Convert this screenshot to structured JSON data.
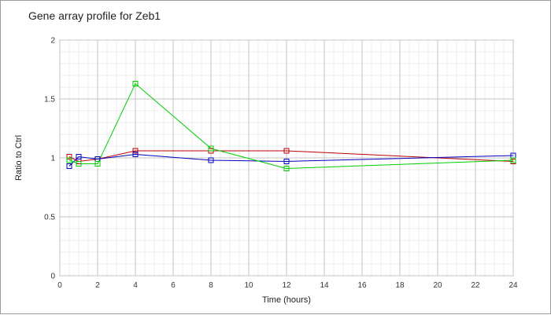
{
  "chart_data": {
    "type": "line",
    "title": "Gene array profile for Zeb1",
    "xlabel": "Time (hours)",
    "ylabel": "Ratio to Ctrl",
    "xlim": [
      0,
      24
    ],
    "ylim": [
      0,
      2
    ],
    "x_ticks": [
      0,
      2,
      4,
      6,
      8,
      10,
      12,
      14,
      16,
      18,
      20,
      22,
      24
    ],
    "y_ticks": [
      0,
      0.5,
      1,
      1.5,
      2
    ],
    "x_tick_labels": [
      "0",
      "2",
      "4",
      "6",
      "8",
      "10",
      "12",
      "14",
      "16",
      "18",
      "20",
      "22",
      "24"
    ],
    "y_tick_labels": [
      "0",
      "0.5",
      "1",
      "1.5",
      "2"
    ],
    "grid": true,
    "minor_grid": true,
    "marker": "square",
    "series": [
      {
        "color": "#c00000",
        "x": [
          0.5,
          1,
          2,
          4,
          8,
          12,
          24
        ],
        "y": [
          1.01,
          0.97,
          0.99,
          1.06,
          1.06,
          1.06,
          0.97
        ]
      },
      {
        "color": "#0000c0",
        "x": [
          0.5,
          1,
          2,
          4,
          8,
          12,
          24
        ],
        "y": [
          0.93,
          1.01,
          0.99,
          1.03,
          0.98,
          0.97,
          1.02
        ]
      },
      {
        "color": "#00cc00",
        "x": [
          0.5,
          1,
          2,
          4,
          8,
          12,
          24
        ],
        "y": [
          0.98,
          0.95,
          0.95,
          1.63,
          1.08,
          0.91,
          0.98
        ]
      }
    ]
  }
}
